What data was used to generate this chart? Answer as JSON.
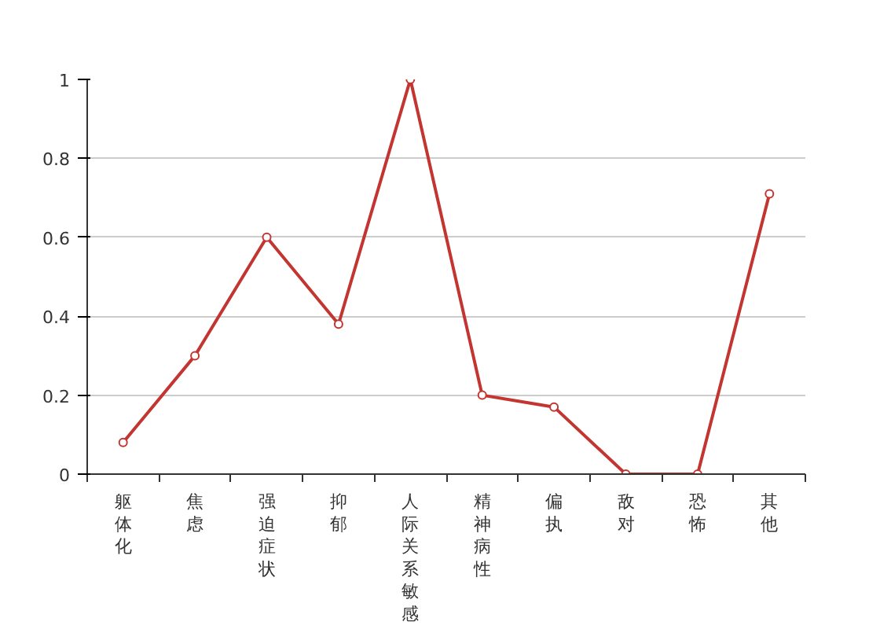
{
  "chart_data": {
    "type": "line",
    "categories": [
      "躯体化",
      "焦虑",
      "强迫症状",
      "抑郁",
      "人际关系敏感",
      "精神病性",
      "偏执",
      "敌对",
      "恐怖",
      "其他"
    ],
    "series": [
      {
        "color": "#c23531",
        "values": [
          0.08,
          0.3,
          0.6,
          0.38,
          1,
          0.2,
          0.17,
          0,
          0,
          0.71
        ]
      }
    ],
    "ylim": [
      0,
      1
    ],
    "yticks": [
      0,
      0.2,
      0.4,
      0.6,
      0.8,
      1
    ],
    "grid": "y",
    "marker": "circle",
    "line_style": "solid"
  }
}
